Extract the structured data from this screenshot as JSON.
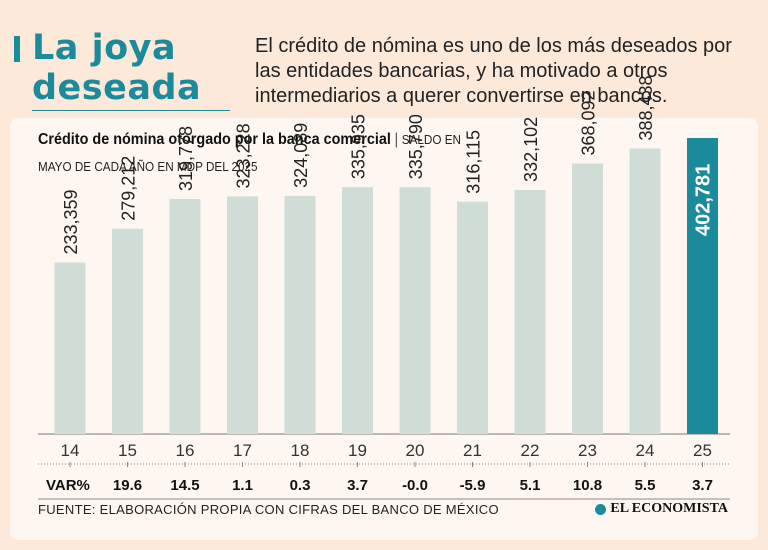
{
  "headline": {
    "line1": "La joya",
    "line2": "deseada"
  },
  "intro": "El crédito de nómina es uno de los más deseados por las entidades bancarias, y ha motivado a otros intermediarios a querer convertirse en bancos.",
  "colors": {
    "accent": "#1b8a9a",
    "bar": "#d0dcd6",
    "background": "#fde9d9"
  },
  "chart_data": {
    "type": "bar",
    "title": "Crédito de nómina otorgado por la banca comercial",
    "subtitle_part1": "SALDO EN",
    "subtitle_part2": "MAYO DE CADA AÑO EN MDP DEL 2025",
    "categories": [
      "14",
      "15",
      "16",
      "17",
      "18",
      "19",
      "20",
      "21",
      "22",
      "23",
      "24",
      "25"
    ],
    "values": [
      233359,
      279212,
      319778,
      323228,
      324089,
      335935,
      335790,
      316115,
      332102,
      368092,
      388438,
      402781
    ],
    "value_labels": [
      "233,359",
      "279,212",
      "319,778",
      "323,228",
      "324,089",
      "335,935",
      "335,790",
      "316,115",
      "332,102",
      "368,092",
      "388,438",
      "402,781"
    ],
    "highlight_index": 11,
    "var_label": "VAR%",
    "var_values": [
      "19.6",
      "14.5",
      "1.1",
      "0.3",
      "3.7",
      "-0.0",
      "-5.9",
      "5.1",
      "10.8",
      "5.5",
      "3.7"
    ],
    "ylim": [
      0,
      402781
    ]
  },
  "source": "FUENTE: ELABORACIÓN PROPIA CON CIFRAS DEL BANCO DE MÉXICO",
  "brand": {
    "name": "EL ECONOMISTA",
    "icon": "economista-logo-icon"
  }
}
